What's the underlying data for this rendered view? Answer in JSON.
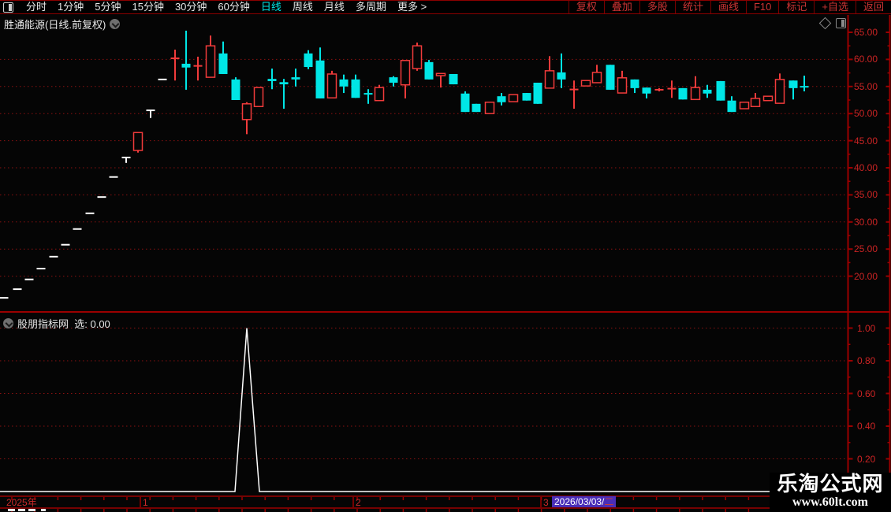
{
  "menu": {
    "left_items": [
      {
        "label": "分时",
        "active": false
      },
      {
        "label": "1分钟",
        "active": false
      },
      {
        "label": "5分钟",
        "active": false
      },
      {
        "label": "15分钟",
        "active": false
      },
      {
        "label": "30分钟",
        "active": false
      },
      {
        "label": "60分钟",
        "active": false
      },
      {
        "label": "日线",
        "active": true
      },
      {
        "label": "周线",
        "active": false
      },
      {
        "label": "月线",
        "active": false
      },
      {
        "label": "多周期",
        "active": false
      },
      {
        "label": "更多 >",
        "active": false
      }
    ],
    "right_items": [
      "复权",
      "叠加",
      "多股",
      "统计",
      "画线",
      "F10",
      "标记",
      "+自选",
      "返回"
    ]
  },
  "chart1": {
    "title": "胜通能源(日线.前复权)",
    "y_tick_labels": [
      "65.00",
      "60.00",
      "55.00",
      "50.00",
      "45.00",
      "40.00",
      "35.00",
      "30.00",
      "25.00",
      "20.00"
    ]
  },
  "panel2": {
    "indicator_name": "股朋指标网",
    "value_label": "选: 0.00",
    "y_tick_labels": [
      "1.00",
      "0.80",
      "0.60",
      "0.40",
      "0.20"
    ]
  },
  "x_axis": {
    "year_label": "2025年",
    "month_labels": [
      {
        "label": "1",
        "x": 181
      },
      {
        "label": "2",
        "x": 451
      },
      {
        "label": "3",
        "x": 689
      }
    ],
    "date_label": "2026/03/03/",
    "date_weekday": "二"
  },
  "watermark": {
    "line1": "乐淘公式网",
    "line2": "www.60lt.com"
  },
  "colors": {
    "up_red": "#f13b3b",
    "down_cyan": "#00e6e6",
    "flat_white": "#ffffff",
    "axis_red": "#9b0000",
    "grid_red": "#8a1111",
    "label_red": "#cc2424",
    "active_tab_cyan": "#00e7e7",
    "date_highlight_purple": "#4a2eb8",
    "background": "#050505"
  },
  "chart_data": [
    {
      "type": "candlestick",
      "title": "胜通能源(日线.前复权)",
      "ylabel": "price",
      "ylim": [
        15.5,
        66
      ],
      "y_ticks": [
        65,
        60,
        55,
        50,
        45,
        40,
        35,
        30,
        25,
        20
      ],
      "grid": "dotted-horizontal",
      "note": "x is horizontal position in px; o/h/l/c are prices; color red=up hollow, cyan=down solid, white=flat one-price bar",
      "candles": [
        {
          "x": 5,
          "o": 16.0,
          "h": 16.0,
          "l": 16.0,
          "c": 16.0,
          "color": "white"
        },
        {
          "x": 22,
          "o": 17.6,
          "h": 17.6,
          "l": 17.6,
          "c": 17.6,
          "color": "white"
        },
        {
          "x": 37,
          "o": 19.4,
          "h": 19.4,
          "l": 19.4,
          "c": 19.4,
          "color": "white"
        },
        {
          "x": 52,
          "o": 21.4,
          "h": 21.4,
          "l": 21.4,
          "c": 21.4,
          "color": "white"
        },
        {
          "x": 68,
          "o": 23.6,
          "h": 23.6,
          "l": 23.6,
          "c": 23.6,
          "color": "white"
        },
        {
          "x": 83,
          "o": 25.8,
          "h": 25.8,
          "l": 25.8,
          "c": 25.8,
          "color": "white"
        },
        {
          "x": 98,
          "o": 28.7,
          "h": 28.7,
          "l": 28.7,
          "c": 28.7,
          "color": "white"
        },
        {
          "x": 114,
          "o": 31.6,
          "h": 31.6,
          "l": 31.6,
          "c": 31.6,
          "color": "white"
        },
        {
          "x": 129,
          "o": 34.6,
          "h": 34.6,
          "l": 34.6,
          "c": 34.6,
          "color": "white"
        },
        {
          "x": 144,
          "o": 38.3,
          "h": 38.3,
          "l": 38.3,
          "c": 38.3,
          "color": "white"
        },
        {
          "x": 160,
          "o": 41.9,
          "h": 41.9,
          "l": 40.9,
          "c": 41.9,
          "color": "white"
        },
        {
          "x": 175,
          "o": 43.2,
          "h": 46.5,
          "l": 42.8,
          "c": 46.5,
          "color": "red"
        },
        {
          "x": 191,
          "o": 50.6,
          "h": 50.6,
          "l": 49.2,
          "c": 50.6,
          "color": "white"
        },
        {
          "x": 206,
          "o": 56.3,
          "h": 56.3,
          "l": 56.3,
          "c": 56.3,
          "color": "white"
        },
        {
          "x": 222,
          "o": 60.2,
          "h": 61.8,
          "l": 56.1,
          "c": 60.2,
          "color": "red"
        },
        {
          "x": 236,
          "o": 59.2,
          "h": 65.3,
          "l": 54.4,
          "c": 58.5,
          "color": "cyan"
        },
        {
          "x": 251,
          "o": 58.8,
          "h": 60.5,
          "l": 56.1,
          "c": 58.8,
          "color": "red"
        },
        {
          "x": 267,
          "o": 56.7,
          "h": 64.4,
          "l": 56.7,
          "c": 62.5,
          "color": "red"
        },
        {
          "x": 283,
          "o": 61.1,
          "h": 63.3,
          "l": 57.3,
          "c": 57.3,
          "color": "cyan"
        },
        {
          "x": 299,
          "o": 56.3,
          "h": 56.7,
          "l": 52.5,
          "c": 52.5,
          "color": "cyan"
        },
        {
          "x": 313,
          "o": 48.9,
          "h": 52.1,
          "l": 46.2,
          "c": 51.8,
          "color": "red"
        },
        {
          "x": 328,
          "o": 51.3,
          "h": 54.8,
          "l": 51.3,
          "c": 54.8,
          "color": "red"
        },
        {
          "x": 345,
          "o": 56.4,
          "h": 58.3,
          "l": 54.5,
          "c": 56.0,
          "color": "cyan"
        },
        {
          "x": 360,
          "o": 55.8,
          "h": 56.4,
          "l": 50.9,
          "c": 55.4,
          "color": "cyan"
        },
        {
          "x": 375,
          "o": 56.7,
          "h": 58.3,
          "l": 55.0,
          "c": 56.3,
          "color": "cyan"
        },
        {
          "x": 391,
          "o": 61.1,
          "h": 61.7,
          "l": 58.2,
          "c": 58.6,
          "color": "cyan"
        },
        {
          "x": 406,
          "o": 59.8,
          "h": 62.2,
          "l": 52.8,
          "c": 52.8,
          "color": "cyan"
        },
        {
          "x": 421,
          "o": 52.9,
          "h": 57.9,
          "l": 52.9,
          "c": 57.3,
          "color": "red"
        },
        {
          "x": 436,
          "o": 56.3,
          "h": 57.2,
          "l": 53.8,
          "c": 55.0,
          "color": "cyan"
        },
        {
          "x": 451,
          "o": 56.3,
          "h": 57.2,
          "l": 52.9,
          "c": 52.9,
          "color": "cyan"
        },
        {
          "x": 467,
          "o": 53.8,
          "h": 54.5,
          "l": 51.8,
          "c": 53.5,
          "color": "cyan"
        },
        {
          "x": 481,
          "o": 52.4,
          "h": 55.3,
          "l": 52.4,
          "c": 54.8,
          "color": "red"
        },
        {
          "x": 499,
          "o": 56.7,
          "h": 56.9,
          "l": 55.0,
          "c": 55.7,
          "color": "cyan"
        },
        {
          "x": 514,
          "o": 55.3,
          "h": 59.8,
          "l": 52.8,
          "c": 59.8,
          "color": "red"
        },
        {
          "x": 529,
          "o": 58.3,
          "h": 63.1,
          "l": 57.9,
          "c": 62.5,
          "color": "red"
        },
        {
          "x": 544,
          "o": 59.5,
          "h": 59.9,
          "l": 56.3,
          "c": 56.3,
          "color": "cyan"
        },
        {
          "x": 559,
          "o": 57.0,
          "h": 57.4,
          "l": 54.8,
          "c": 57.4,
          "color": "red"
        },
        {
          "x": 575,
          "o": 57.3,
          "h": 57.3,
          "l": 55.4,
          "c": 55.4,
          "color": "cyan"
        },
        {
          "x": 590,
          "o": 53.7,
          "h": 54.1,
          "l": 50.3,
          "c": 50.3,
          "color": "cyan"
        },
        {
          "x": 604,
          "o": 51.8,
          "h": 51.8,
          "l": 50.3,
          "c": 50.3,
          "color": "cyan"
        },
        {
          "x": 621,
          "o": 50.0,
          "h": 52.1,
          "l": 50.0,
          "c": 52.1,
          "color": "red"
        },
        {
          "x": 636,
          "o": 53.2,
          "h": 53.8,
          "l": 51.5,
          "c": 52.1,
          "color": "cyan"
        },
        {
          "x": 651,
          "o": 52.2,
          "h": 53.5,
          "l": 52.2,
          "c": 53.5,
          "color": "red"
        },
        {
          "x": 668,
          "o": 53.8,
          "h": 53.8,
          "l": 52.4,
          "c": 52.4,
          "color": "cyan"
        },
        {
          "x": 682,
          "o": 55.7,
          "h": 55.7,
          "l": 51.8,
          "c": 51.8,
          "color": "cyan"
        },
        {
          "x": 697,
          "o": 54.7,
          "h": 60.6,
          "l": 54.7,
          "c": 57.9,
          "color": "red"
        },
        {
          "x": 712,
          "o": 57.6,
          "h": 61.1,
          "l": 54.7,
          "c": 56.3,
          "color": "cyan"
        },
        {
          "x": 728,
          "o": 54.4,
          "h": 56.1,
          "l": 50.9,
          "c": 54.5,
          "color": "red"
        },
        {
          "x": 743,
          "o": 55.1,
          "h": 56.1,
          "l": 55.1,
          "c": 56.1,
          "color": "red"
        },
        {
          "x": 757,
          "o": 55.7,
          "h": 59.0,
          "l": 55.7,
          "c": 57.6,
          "color": "red"
        },
        {
          "x": 774,
          "o": 59.0,
          "h": 59.0,
          "l": 54.4,
          "c": 54.4,
          "color": "cyan"
        },
        {
          "x": 789,
          "o": 53.8,
          "h": 57.9,
          "l": 53.8,
          "c": 56.6,
          "color": "red"
        },
        {
          "x": 805,
          "o": 56.3,
          "h": 56.3,
          "l": 53.8,
          "c": 54.7,
          "color": "cyan"
        },
        {
          "x": 820,
          "o": 54.8,
          "h": 54.8,
          "l": 52.8,
          "c": 53.7,
          "color": "cyan"
        },
        {
          "x": 836,
          "o": 54.4,
          "h": 54.7,
          "l": 54.1,
          "c": 54.4,
          "color": "red"
        },
        {
          "x": 852,
          "o": 54.6,
          "h": 56.1,
          "l": 52.9,
          "c": 54.6,
          "color": "red"
        },
        {
          "x": 866,
          "o": 54.7,
          "h": 54.7,
          "l": 52.6,
          "c": 52.6,
          "color": "cyan"
        },
        {
          "x": 882,
          "o": 52.6,
          "h": 56.9,
          "l": 52.6,
          "c": 54.8,
          "color": "red"
        },
        {
          "x": 897,
          "o": 54.4,
          "h": 55.3,
          "l": 52.9,
          "c": 53.7,
          "color": "cyan"
        },
        {
          "x": 914,
          "o": 56.0,
          "h": 56.0,
          "l": 52.4,
          "c": 52.4,
          "color": "cyan"
        },
        {
          "x": 928,
          "o": 52.4,
          "h": 53.2,
          "l": 50.3,
          "c": 50.3,
          "color": "cyan"
        },
        {
          "x": 944,
          "o": 50.9,
          "h": 52.1,
          "l": 50.9,
          "c": 52.1,
          "color": "red"
        },
        {
          "x": 958,
          "o": 51.3,
          "h": 53.8,
          "l": 51.3,
          "c": 52.8,
          "color": "red"
        },
        {
          "x": 974,
          "o": 52.4,
          "h": 53.2,
          "l": 52.4,
          "c": 53.2,
          "color": "red"
        },
        {
          "x": 989,
          "o": 51.9,
          "h": 57.4,
          "l": 51.9,
          "c": 56.3,
          "color": "red"
        },
        {
          "x": 1006,
          "o": 56.1,
          "h": 56.1,
          "l": 52.6,
          "c": 54.7,
          "color": "cyan"
        },
        {
          "x": 1020,
          "o": 55.1,
          "h": 57.0,
          "l": 54.1,
          "c": 54.8,
          "color": "cyan"
        }
      ]
    },
    {
      "type": "line",
      "title": "股朋指标网",
      "series_name": "选",
      "current_value": "0.00",
      "ylim": [
        0,
        1.05
      ],
      "y_ticks": [
        1.0,
        0.8,
        0.6,
        0.4,
        0.2
      ],
      "grid": "dotted-horizontal",
      "line_color": "#ffffff",
      "note": "flat at 0 with single triangular spike to 1.0",
      "points": [
        {
          "x": 0,
          "v": 0
        },
        {
          "x": 298,
          "v": 0
        },
        {
          "x": 313,
          "v": 1.0
        },
        {
          "x": 329,
          "v": 0
        },
        {
          "x": 976,
          "v": 0
        }
      ]
    }
  ]
}
